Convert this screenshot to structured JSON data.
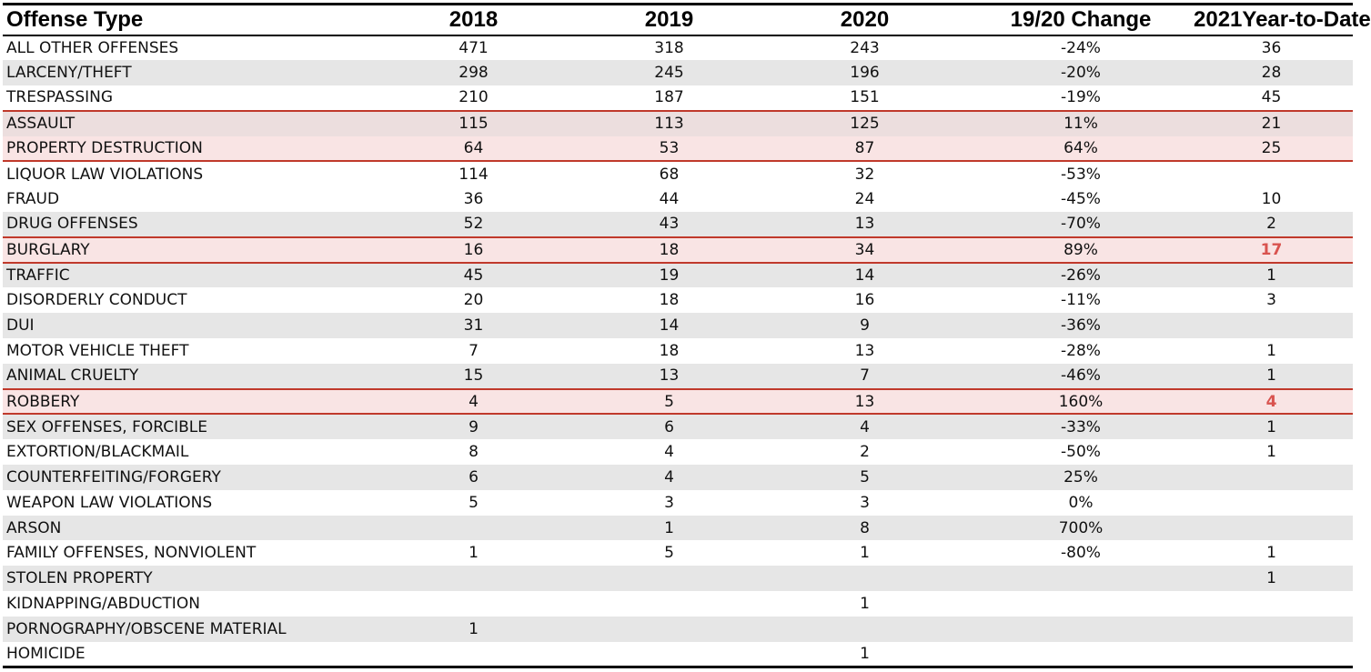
{
  "headers": [
    "Offense Type",
    "2018",
    "2019",
    "2020",
    "19/20 Change",
    "2021Year-to-Date"
  ],
  "rows": [
    {
      "offense": "ALL OTHER OFFENSES",
      "y2018": "471",
      "y2019": "318",
      "y2020": "243",
      "change": "-24%",
      "ytd": "36"
    },
    {
      "offense": "LARCENY/THEFT",
      "y2018": "298",
      "y2019": "245",
      "y2020": "196",
      "change": "-20%",
      "ytd": "28"
    },
    {
      "offense": "TRESPASSING",
      "y2018": "210",
      "y2019": "187",
      "y2020": "151",
      "change": "-19%",
      "ytd": "45"
    },
    {
      "offense": "ASSAULT",
      "y2018": "115",
      "y2019": "113",
      "y2020": "125",
      "change": "11%",
      "ytd": "21"
    },
    {
      "offense": "PROPERTY DESTRUCTION",
      "y2018": "64",
      "y2019": "53",
      "y2020": "87",
      "change": "64%",
      "ytd": "25"
    },
    {
      "offense": "LIQUOR LAW VIOLATIONS",
      "y2018": "114",
      "y2019": "68",
      "y2020": "32",
      "change": "-53%",
      "ytd": ""
    },
    {
      "offense": "FRAUD",
      "y2018": "36",
      "y2019": "44",
      "y2020": "24",
      "change": "-45%",
      "ytd": "10"
    },
    {
      "offense": "DRUG OFFENSES",
      "y2018": "52",
      "y2019": "43",
      "y2020": "13",
      "change": "-70%",
      "ytd": "2"
    },
    {
      "offense": "BURGLARY",
      "y2018": "16",
      "y2019": "18",
      "y2020": "34",
      "change": "89%",
      "ytd": "17"
    },
    {
      "offense": "TRAFFIC",
      "y2018": "45",
      "y2019": "19",
      "y2020": "14",
      "change": "-26%",
      "ytd": "1"
    },
    {
      "offense": "DISORDERLY CONDUCT",
      "y2018": "20",
      "y2019": "18",
      "y2020": "16",
      "change": "-11%",
      "ytd": "3"
    },
    {
      "offense": "DUI",
      "y2018": "31",
      "y2019": "14",
      "y2020": "9",
      "change": "-36%",
      "ytd": ""
    },
    {
      "offense": "MOTOR VEHICLE THEFT",
      "y2018": "7",
      "y2019": "18",
      "y2020": "13",
      "change": "-28%",
      "ytd": "1"
    },
    {
      "offense": "ANIMAL CRUELTY",
      "y2018": "15",
      "y2019": "13",
      "y2020": "7",
      "change": "-46%",
      "ytd": "1"
    },
    {
      "offense": "ROBBERY",
      "y2018": "4",
      "y2019": "5",
      "y2020": "13",
      "change": "160%",
      "ytd": "4"
    },
    {
      "offense": "SEX OFFENSES, FORCIBLE",
      "y2018": "9",
      "y2019": "6",
      "y2020": "4",
      "change": "-33%",
      "ytd": "1"
    },
    {
      "offense": "EXTORTION/BLACKMAIL",
      "y2018": "8",
      "y2019": "4",
      "y2020": "2",
      "change": "-50%",
      "ytd": "1"
    },
    {
      "offense": "COUNTERFEITING/FORGERY",
      "y2018": "6",
      "y2019": "4",
      "y2020": "5",
      "change": "25%",
      "ytd": ""
    },
    {
      "offense": "WEAPON LAW VIOLATIONS",
      "y2018": "5",
      "y2019": "3",
      "y2020": "3",
      "change": "0%",
      "ytd": ""
    },
    {
      "offense": "ARSON",
      "y2018": "",
      "y2019": "1",
      "y2020": "8",
      "change": "700%",
      "ytd": ""
    },
    {
      "offense": "FAMILY OFFENSES, NONVIOLENT",
      "y2018": "1",
      "y2019": "5",
      "y2020": "1",
      "change": "-80%",
      "ytd": "1"
    },
    {
      "offense": "STOLEN PROPERTY",
      "y2018": "",
      "y2019": "",
      "y2020": "",
      "change": "",
      "ytd": "1"
    },
    {
      "offense": "KIDNAPPING/ABDUCTION",
      "y2018": "",
      "y2019": "",
      "y2020": "1",
      "change": "",
      "ytd": ""
    },
    {
      "offense": "PORNOGRAPHY/OBSCENE MATERIAL",
      "y2018": "1",
      "y2019": "",
      "y2020": "",
      "change": "",
      "ytd": ""
    },
    {
      "offense": "HOMICIDE",
      "y2018": "",
      "y2019": "",
      "y2020": "1",
      "change": "",
      "ytd": ""
    }
  ],
  "colors": {
    "highlight_border": "#c0392b",
    "highlight_fill": "#f9e4e4",
    "alert_value": "#d9534f",
    "stripe": "#e6e6e6"
  }
}
